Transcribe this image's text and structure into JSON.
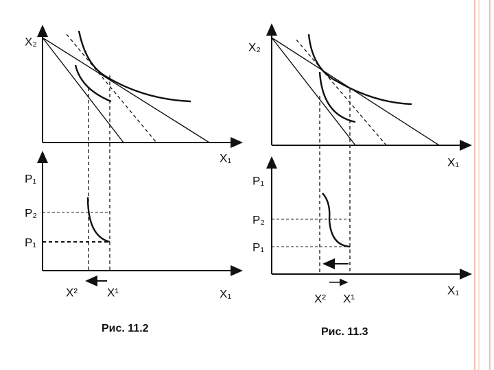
{
  "figures": [
    {
      "caption": "Рис. 11.2",
      "top": {
        "y_axis": "X₂",
        "x_axis": "X₁"
      },
      "bottom": {
        "y_axis": "P₁",
        "p2": "P₂",
        "p1": "P₁",
        "x2": "X²",
        "x1": "X¹",
        "x_axis": "X₁"
      }
    },
    {
      "caption": "Рис. 11.3",
      "top": {
        "y_axis": "X₂",
        "x_axis": "X₁"
      },
      "bottom": {
        "y_axis": "P₁",
        "p2": "P₂",
        "p1": "P₁",
        "x2": "X²",
        "x1": "X¹",
        "x_axis": "X₁"
      }
    }
  ]
}
